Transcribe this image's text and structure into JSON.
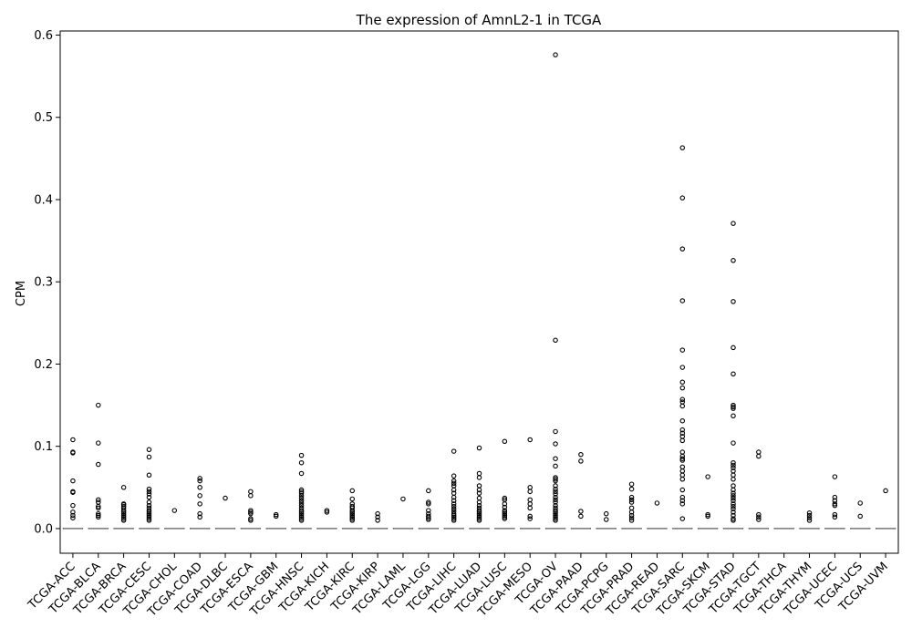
{
  "chart_data": {
    "type": "box",
    "title": "The expression of AmnL2-1 in TCGA",
    "xlabel": "",
    "ylabel": "CPM",
    "ylim": [
      -0.03,
      0.605
    ],
    "yticks": [
      "0.0",
      "0.1",
      "0.2",
      "0.3",
      "0.4",
      "0.5",
      "0.6"
    ],
    "grid": false,
    "median": 0,
    "colors": {
      "box": "#000000",
      "median": "#777777",
      "outlier": "#000000"
    },
    "categories": [
      "TCGA-ACC",
      "TCGA-BLCA",
      "TCGA-BRCA",
      "TCGA-CESC",
      "TCGA-CHOL",
      "TCGA-COAD",
      "TCGA-DLBC",
      "TCGA-ESCA",
      "TCGA-GBM",
      "TCGA-HNSC",
      "TCGA-KICH",
      "TCGA-KIRC",
      "TCGA-KIRP",
      "TCGA-LAML",
      "TCGA-LGG",
      "TCGA-LIHC",
      "TCGA-LUAD",
      "TCGA-LUSC",
      "TCGA-MESO",
      "TCGA-OV",
      "TCGA-PAAD",
      "TCGA-PCPG",
      "TCGA-PRAD",
      "TCGA-READ",
      "TCGA-SARC",
      "TCGA-SKCM",
      "TCGA-STAD",
      "TCGA-TGCT",
      "TCGA-THCA",
      "TCGA-THYM",
      "TCGA-UCEC",
      "TCGA-UCS",
      "TCGA-UVM"
    ],
    "outliers": [
      [
        0.108,
        0.093,
        0.092,
        0.058,
        0.045,
        0.044,
        0.028,
        0.02,
        0.016,
        0.013
      ],
      [
        0.15,
        0.104,
        0.078,
        0.035,
        0.032,
        0.027,
        0.025,
        0.018,
        0.016,
        0.014
      ],
      [
        0.05,
        0.03,
        0.029,
        0.027,
        0.025,
        0.022,
        0.02,
        0.018,
        0.016,
        0.014,
        0.012,
        0.01
      ],
      [
        0.096,
        0.087,
        0.065,
        0.048,
        0.045,
        0.042,
        0.038,
        0.032,
        0.028,
        0.025,
        0.022,
        0.02,
        0.018,
        0.016,
        0.014,
        0.012,
        0.01
      ],
      [
        0.022
      ],
      [
        0.061,
        0.058,
        0.05,
        0.04,
        0.03,
        0.018,
        0.014
      ],
      [
        0.037
      ],
      [
        0.045,
        0.04,
        0.022,
        0.02,
        0.018,
        0.012,
        0.01
      ],
      [
        0.017,
        0.015
      ],
      [
        0.089,
        0.08,
        0.067,
        0.047,
        0.045,
        0.043,
        0.04,
        0.037,
        0.034,
        0.031,
        0.028,
        0.025,
        0.022,
        0.02,
        0.018,
        0.016,
        0.014,
        0.012,
        0.01
      ],
      [
        0.022,
        0.02
      ],
      [
        0.046,
        0.036,
        0.03,
        0.027,
        0.025,
        0.022,
        0.02,
        0.018,
        0.016,
        0.014,
        0.012,
        0.01
      ],
      [
        0.018,
        0.014,
        0.01
      ],
      [
        0.036
      ],
      [
        0.046,
        0.032,
        0.03,
        0.022,
        0.018,
        0.015,
        0.013,
        0.011
      ],
      [
        0.094,
        0.064,
        0.058,
        0.055,
        0.052,
        0.047,
        0.043,
        0.038,
        0.034,
        0.03,
        0.027,
        0.024,
        0.021,
        0.018,
        0.016,
        0.014,
        0.012,
        0.01
      ],
      [
        0.098,
        0.067,
        0.062,
        0.052,
        0.047,
        0.043,
        0.037,
        0.032,
        0.028,
        0.025,
        0.022,
        0.02,
        0.018,
        0.016,
        0.014,
        0.012,
        0.01
      ],
      [
        0.106,
        0.037,
        0.035,
        0.03,
        0.026,
        0.022,
        0.02,
        0.018,
        0.016,
        0.014,
        0.012
      ],
      [
        0.108,
        0.05,
        0.045,
        0.035,
        0.03,
        0.025,
        0.015,
        0.012
      ],
      [
        0.576,
        0.229,
        0.118,
        0.103,
        0.085,
        0.076,
        0.062,
        0.06,
        0.058,
        0.052,
        0.048,
        0.045,
        0.042,
        0.038,
        0.035,
        0.032,
        0.028,
        0.025,
        0.022,
        0.02,
        0.018,
        0.016,
        0.014,
        0.012,
        0.01
      ],
      [
        0.09,
        0.082,
        0.021,
        0.015
      ],
      [
        0.018,
        0.011
      ],
      [
        0.054,
        0.048,
        0.038,
        0.035,
        0.032,
        0.025,
        0.02,
        0.016,
        0.013,
        0.01
      ],
      [
        0.031
      ],
      [
        0.463,
        0.402,
        0.34,
        0.277,
        0.217,
        0.196,
        0.178,
        0.171,
        0.157,
        0.154,
        0.149,
        0.131,
        0.12,
        0.116,
        0.112,
        0.107,
        0.093,
        0.088,
        0.085,
        0.083,
        0.075,
        0.07,
        0.065,
        0.06,
        0.047,
        0.038,
        0.034,
        0.03,
        0.012
      ],
      [
        0.063,
        0.017,
        0.015
      ],
      [
        0.371,
        0.326,
        0.276,
        0.22,
        0.188,
        0.15,
        0.148,
        0.146,
        0.137,
        0.104,
        0.08,
        0.077,
        0.074,
        0.07,
        0.065,
        0.06,
        0.052,
        0.047,
        0.043,
        0.04,
        0.037,
        0.034,
        0.03,
        0.027,
        0.024,
        0.02,
        0.016,
        0.012,
        0.01
      ],
      [
        0.093,
        0.088,
        0.017,
        0.014,
        0.011
      ],
      [],
      [
        0.019,
        0.016,
        0.013,
        0.01
      ],
      [
        0.063,
        0.038,
        0.034,
        0.03,
        0.028,
        0.017,
        0.014
      ],
      [
        0.031,
        0.015
      ],
      [
        0.046
      ]
    ]
  }
}
